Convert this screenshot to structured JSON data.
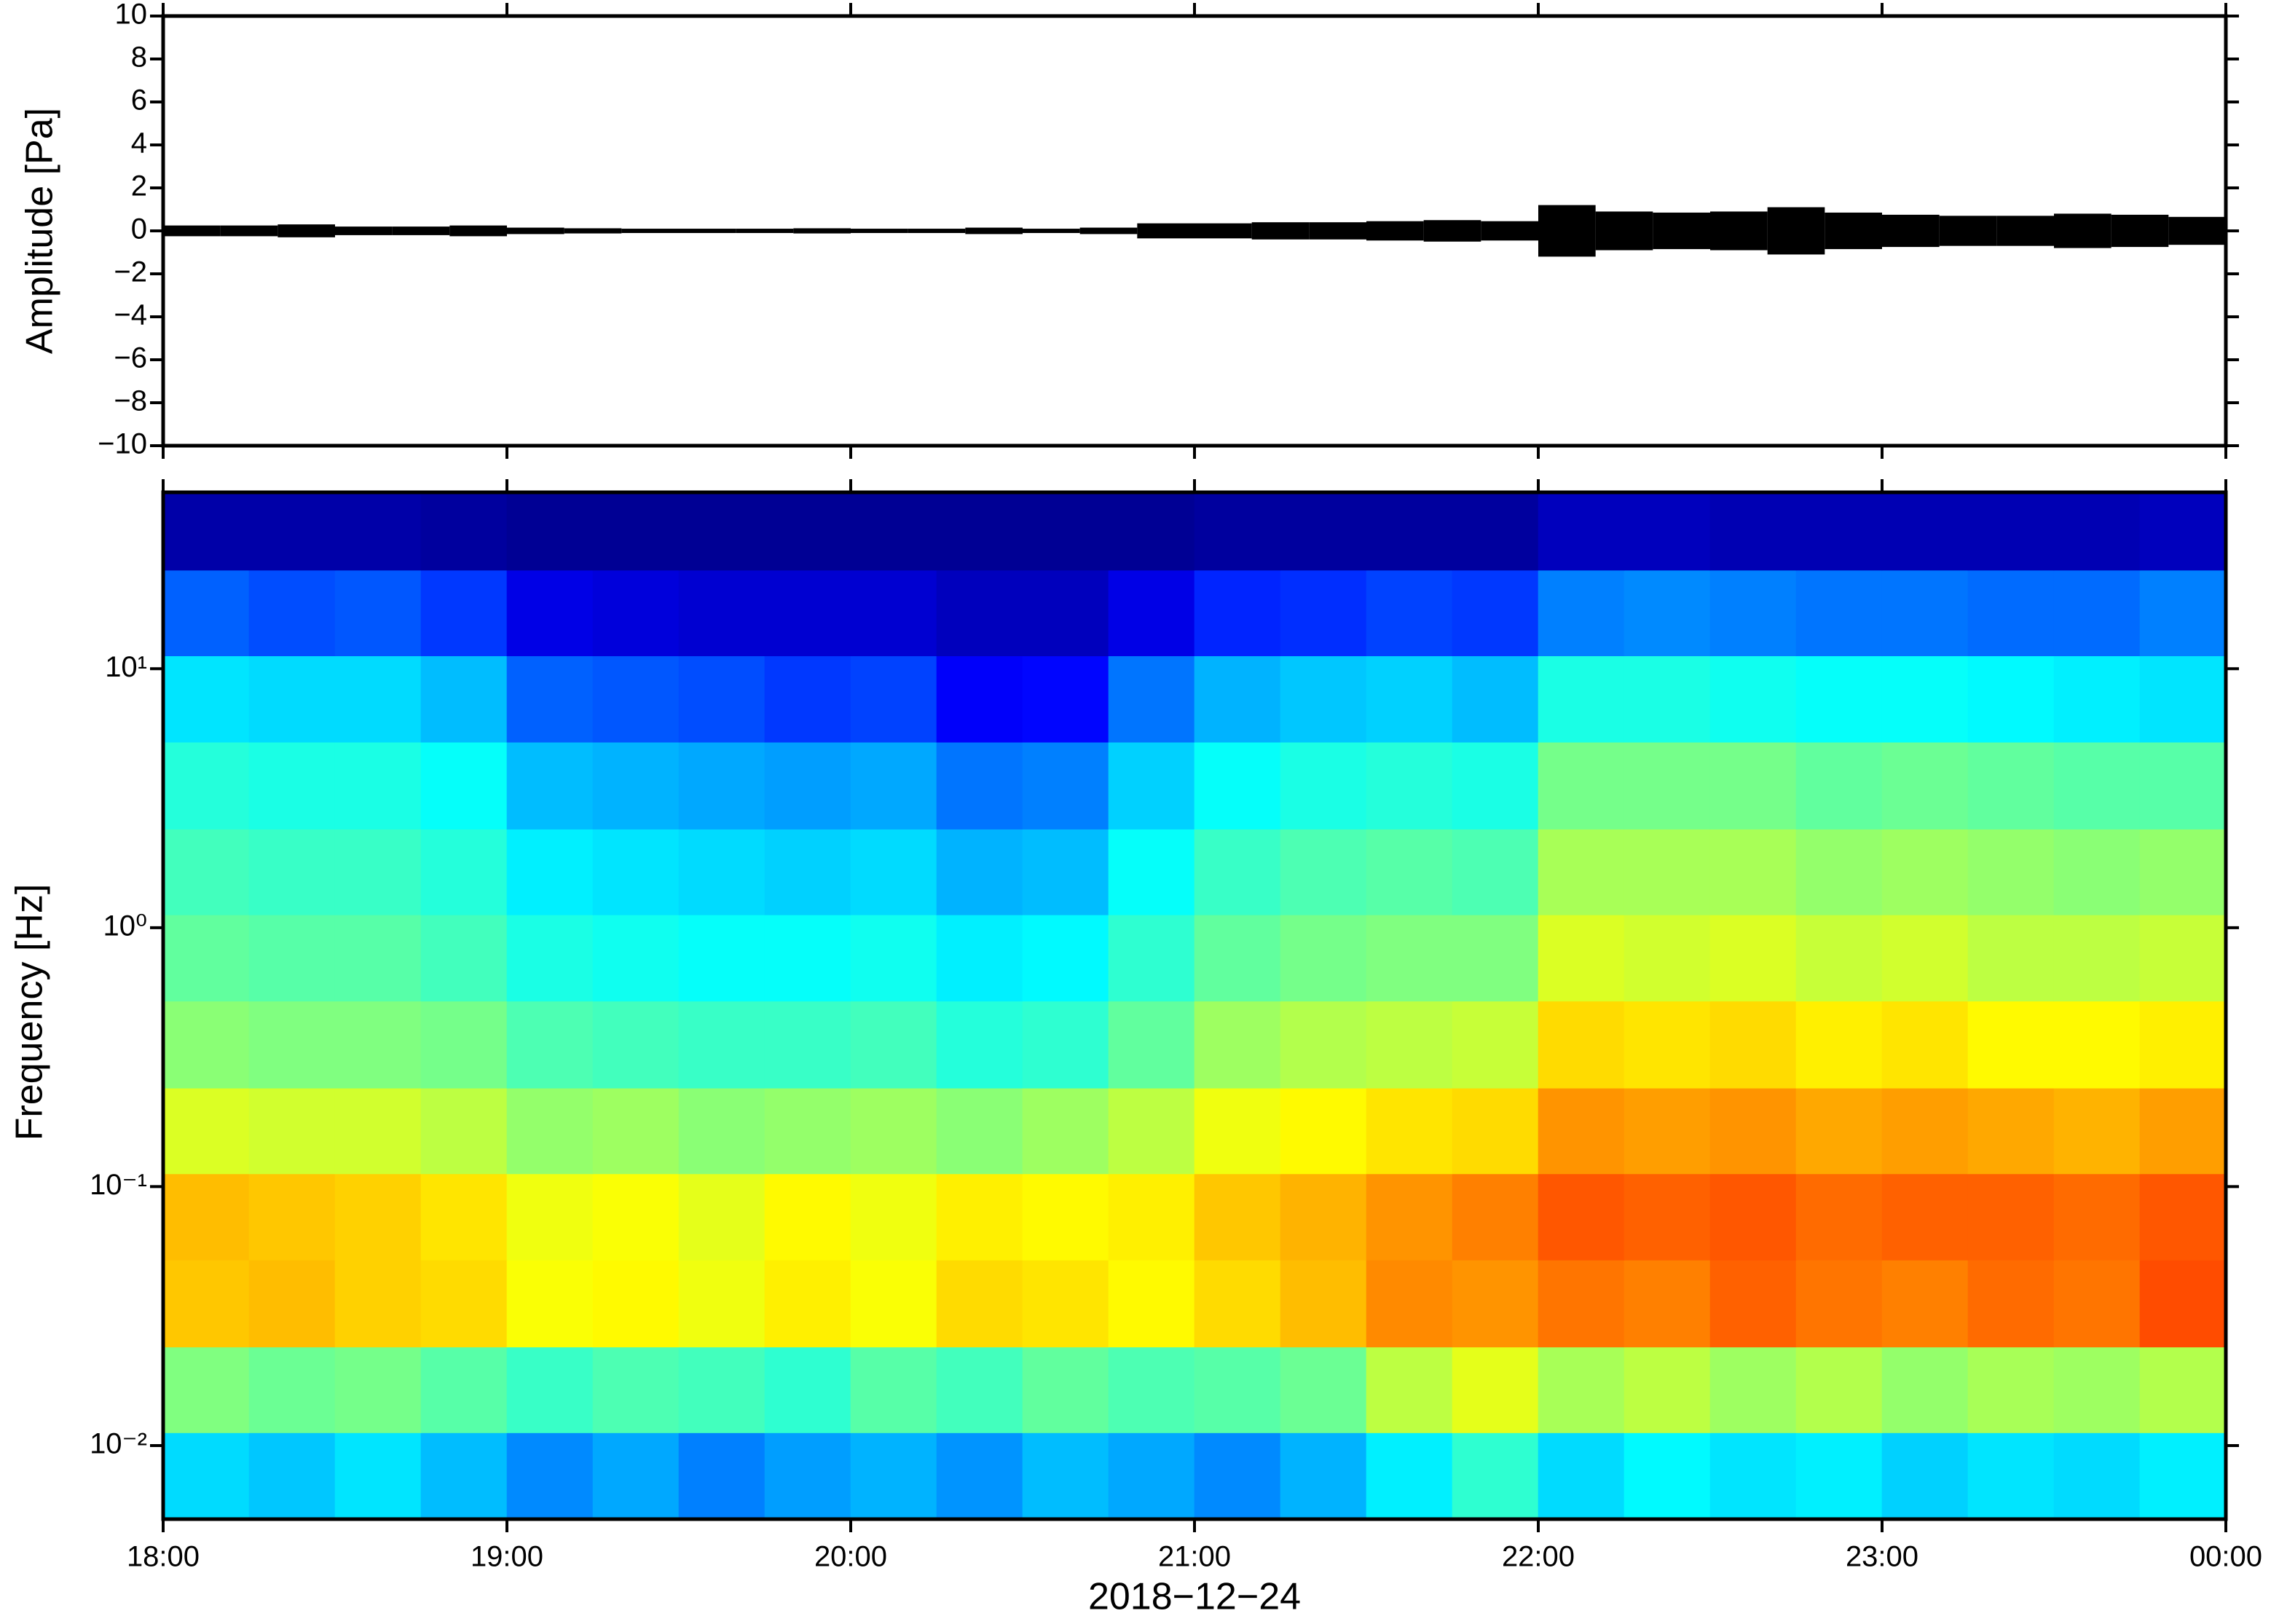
{
  "chart_data": [
    {
      "type": "envelope",
      "ylabel": "Amplitude [Pa]",
      "color": "#000000",
      "x": [
        0,
        10,
        20,
        30,
        40,
        50,
        60,
        70,
        80,
        90,
        100,
        110,
        120,
        130,
        140,
        150,
        160,
        170,
        180,
        190,
        200,
        210,
        220,
        230,
        240,
        250,
        260,
        270,
        280,
        290,
        300,
        310,
        320,
        330,
        340,
        350
      ],
      "values": [
        0.25,
        0.25,
        0.3,
        0.2,
        0.2,
        0.25,
        0.15,
        0.12,
        0.1,
        0.1,
        0.1,
        0.12,
        0.1,
        0.1,
        0.15,
        0.1,
        0.15,
        0.35,
        0.35,
        0.4,
        0.4,
        0.45,
        0.5,
        0.45,
        1.2,
        0.9,
        0.85,
        0.9,
        1.1,
        0.85,
        0.75,
        0.7,
        0.7,
        0.8,
        0.75,
        0.65
      ],
      "xlim": [
        0,
        360
      ],
      "ylim": [
        -10,
        10
      ],
      "yticks": [
        {
          "value": -10,
          "label": "−10"
        },
        {
          "value": -8,
          "label": "−8"
        },
        {
          "value": -6,
          "label": "−6"
        },
        {
          "value": -4,
          "label": "−4"
        },
        {
          "value": -2,
          "label": "−2"
        },
        0,
        2,
        4,
        6,
        8,
        10
      ]
    },
    {
      "type": "heatmap",
      "ylabel": "Frequency [Hz]",
      "xlabel": "2018−12−24",
      "colormap": "jet",
      "ylog": true,
      "xbins": [
        0,
        15,
        30,
        45,
        60,
        75,
        90,
        105,
        120,
        135,
        150,
        165,
        180,
        195,
        210,
        225,
        240,
        255,
        270,
        285,
        300,
        315,
        330,
        345,
        360
      ],
      "ybins": [
        0.0052,
        0.0112,
        0.024,
        0.052,
        0.112,
        0.24,
        0.52,
        1.12,
        2.4,
        5.2,
        11.2,
        24,
        48
      ],
      "zlim": [
        0,
        10
      ],
      "z": [
        [
          3.4,
          3.2,
          3.5,
          3.1,
          2.6,
          2.9,
          2.5,
          2.8,
          3.0,
          2.7,
          3.1,
          2.9,
          2.6,
          3.0,
          3.6,
          4.2,
          3.4,
          3.7,
          3.5,
          3.6,
          3.3,
          3.5,
          3.4,
          3.6
        ],
        [
          5.0,
          4.8,
          4.9,
          4.6,
          4.3,
          4.5,
          4.4,
          4.2,
          4.6,
          4.4,
          4.7,
          4.5,
          4.6,
          4.8,
          5.6,
          6.0,
          5.4,
          5.6,
          5.3,
          5.5,
          5.2,
          5.4,
          5.3,
          5.5
        ],
        [
          6.8,
          6.9,
          6.7,
          6.6,
          6.2,
          6.3,
          6.1,
          6.4,
          6.2,
          6.6,
          6.5,
          6.3,
          6.6,
          6.9,
          7.4,
          7.3,
          7.6,
          7.5,
          7.8,
          7.6,
          7.5,
          7.7,
          7.6,
          8.0
        ],
        [
          6.9,
          6.8,
          6.7,
          6.5,
          6.1,
          6.2,
          6.0,
          6.3,
          6.1,
          6.4,
          6.3,
          6.4,
          6.8,
          7.0,
          7.3,
          7.5,
          7.9,
          7.8,
          7.9,
          7.7,
          7.8,
          7.8,
          7.7,
          7.9
        ],
        [
          5.9,
          5.8,
          5.8,
          5.6,
          5.2,
          5.3,
          5.1,
          5.2,
          5.3,
          5.1,
          5.3,
          5.6,
          6.1,
          6.3,
          6.5,
          6.6,
          7.3,
          7.2,
          7.3,
          7.1,
          7.2,
          7.1,
          7.0,
          7.2
        ],
        [
          5.1,
          5.0,
          5.0,
          4.9,
          4.5,
          4.4,
          4.3,
          4.3,
          4.4,
          4.1,
          4.2,
          4.7,
          5.3,
          5.5,
          5.6,
          5.7,
          6.6,
          6.5,
          6.6,
          6.4,
          6.5,
          6.3,
          6.3,
          6.4
        ],
        [
          4.7,
          4.6,
          4.6,
          4.4,
          4.0,
          3.9,
          3.8,
          3.8,
          3.9,
          3.6,
          3.7,
          4.2,
          4.7,
          4.9,
          5.0,
          5.0,
          5.9,
          5.8,
          5.9,
          5.7,
          5.8,
          5.6,
          5.6,
          5.7
        ],
        [
          4.4,
          4.3,
          4.3,
          4.1,
          3.6,
          3.5,
          3.4,
          3.3,
          3.4,
          3.0,
          3.1,
          3.8,
          4.3,
          4.5,
          4.6,
          4.5,
          5.4,
          5.4,
          5.4,
          5.2,
          5.3,
          5.2,
          5.1,
          5.2
        ],
        [
          4.1,
          4.0,
          4.0,
          3.8,
          3.1,
          3.0,
          2.9,
          2.8,
          2.9,
          2.4,
          2.5,
          3.3,
          3.8,
          4.0,
          4.1,
          4.0,
          4.9,
          4.9,
          4.9,
          4.7,
          4.8,
          4.7,
          4.6,
          4.6
        ],
        [
          3.5,
          3.4,
          3.4,
          3.1,
          2.2,
          2.1,
          2.0,
          1.8,
          1.9,
          1.2,
          1.3,
          2.4,
          3.0,
          3.2,
          3.3,
          3.1,
          4.0,
          4.0,
          3.9,
          3.8,
          3.8,
          3.7,
          3.6,
          3.5
        ],
        [
          2.2,
          2.0,
          2.1,
          1.8,
          1.0,
          0.9,
          0.8,
          0.8,
          0.8,
          0.6,
          0.6,
          1.0,
          1.6,
          1.7,
          1.9,
          1.8,
          2.5,
          2.6,
          2.5,
          2.4,
          2.4,
          2.3,
          2.3,
          2.5
        ],
        [
          0.4,
          0.4,
          0.4,
          0.3,
          0.2,
          0.2,
          0.2,
          0.2,
          0.2,
          0.2,
          0.2,
          0.2,
          0.3,
          0.3,
          0.3,
          0.3,
          0.6,
          0.6,
          0.5,
          0.5,
          0.5,
          0.5,
          0.5,
          0.6
        ]
      ],
      "xlim": [
        0,
        360
      ],
      "ylim": [
        0.0052,
        48
      ],
      "xticks": [
        {
          "value": 0,
          "label": "18:00"
        },
        {
          "value": 60,
          "label": "19:00"
        },
        {
          "value": 120,
          "label": "20:00"
        },
        {
          "value": 180,
          "label": "21:00"
        },
        {
          "value": 240,
          "label": "22:00"
        },
        {
          "value": 300,
          "label": "23:00"
        },
        {
          "value": 360,
          "label": "00:00"
        }
      ],
      "yticks": [
        {
          "value": 0.01,
          "label": "10⁻²"
        },
        {
          "value": 0.1,
          "label": "10⁻¹"
        },
        {
          "value": 1,
          "label": "10⁰"
        },
        {
          "value": 10,
          "label": "10¹"
        }
      ]
    }
  ]
}
